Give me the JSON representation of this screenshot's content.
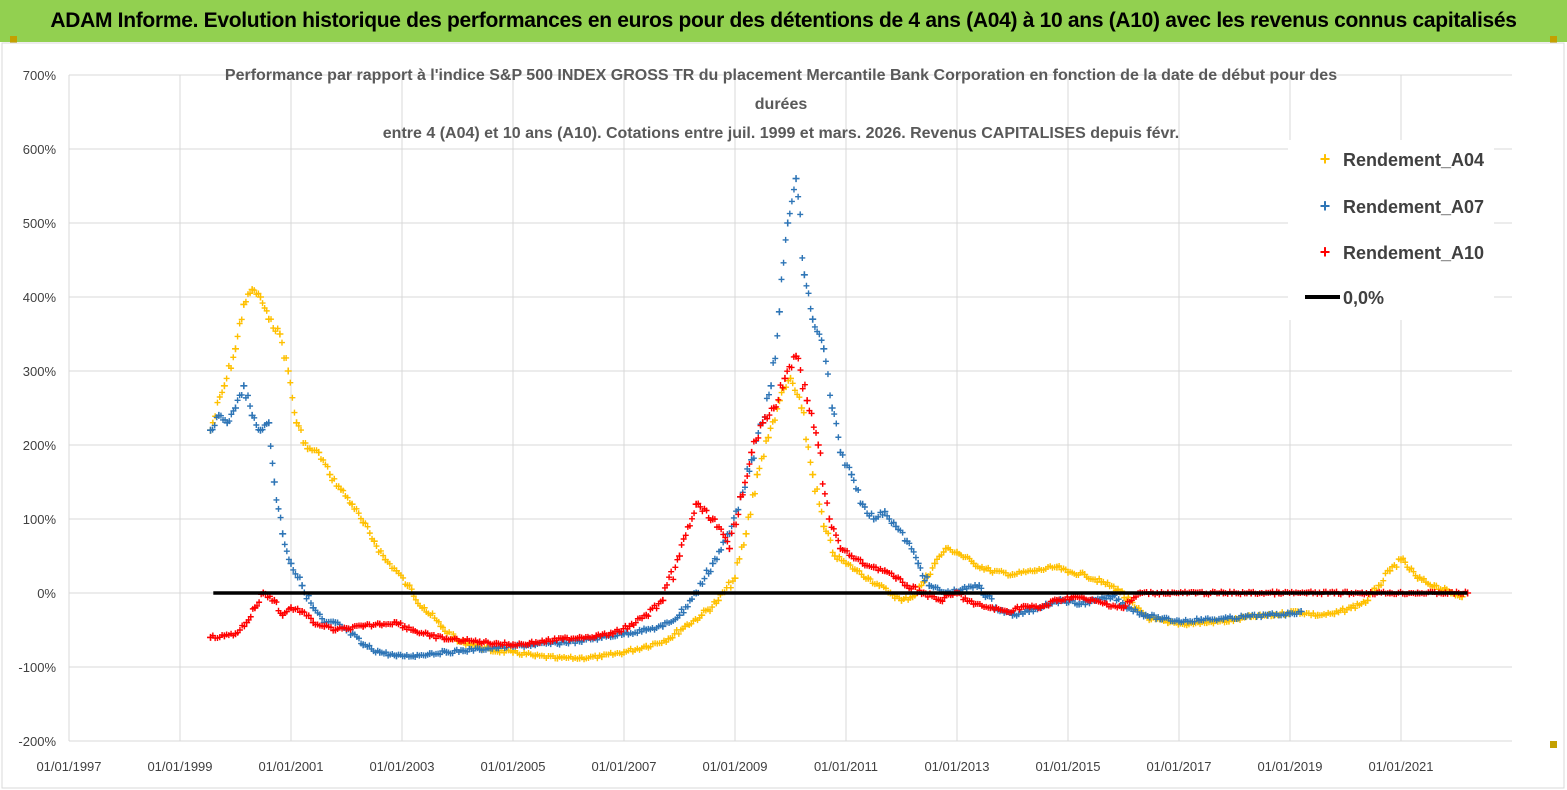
{
  "banner": {
    "title": "ADAM Informe. Evolution historique des performances en euros pour des détentions de 4 ans (A04) à 10 ans (A10) avec les revenus connus capitalisés"
  },
  "chart_data": {
    "type": "scatter",
    "title_lines": [
      "Performance par rapport à l'indice S&P 500 INDEX GROSS TR  du placement Mercantile Bank Corporation en fonction de la date de début pour des",
      "durées",
      "entre 4 (A04) et 10 ans (A10). Cotations entre juil. 1999 et mars. 2026. Revenus CAPITALISES depuis févr."
    ],
    "y_ticks": [
      "700%",
      "600%",
      "500%",
      "400%",
      "300%",
      "200%",
      "100%",
      "0%",
      "-100%",
      "-200%"
    ],
    "y_tick_values": [
      700,
      600,
      500,
      400,
      300,
      200,
      100,
      0,
      -100,
      -200
    ],
    "ylim": [
      -200,
      700
    ],
    "x_ticks": [
      "01/01/1997",
      "01/01/1999",
      "01/01/2001",
      "01/01/2003",
      "01/01/2005",
      "01/01/2007",
      "01/01/2009",
      "01/01/2011",
      "01/01/2013",
      "01/01/2015",
      "01/01/2017",
      "01/01/2019",
      "01/01/2021"
    ],
    "xlim": [
      1997.0,
      2023.0
    ],
    "legend": [
      {
        "name": "Rendement_A04",
        "color": "#ffc000",
        "marker": "+"
      },
      {
        "name": "Rendement_A07",
        "color": "#2e75b6",
        "marker": "+"
      },
      {
        "name": "Rendement_A10",
        "color": "#ff0000",
        "marker": "+"
      },
      {
        "name": "0,0%",
        "color": "#000000",
        "marker": "line"
      }
    ],
    "zero_line": {
      "x_start": 1999.6,
      "x_end": 2022.2,
      "y": 0
    },
    "series": [
      {
        "name": "Rendement_A04",
        "color": "#ffc000",
        "x": [
          1999.55,
          1999.8,
          2000.0,
          2000.15,
          2000.3,
          2000.45,
          2000.6,
          2000.8,
          2000.95,
          2001.1,
          2001.3,
          2001.5,
          2001.7,
          2001.9,
          2002.1,
          2002.3,
          2002.5,
          2002.7,
          2002.9,
          2003.1,
          2003.4,
          2003.7,
          2004.0,
          2004.3,
          2004.6,
          2005.0,
          2005.4,
          2005.8,
          2006.2,
          2006.6,
          2007.0,
          2007.4,
          2007.8,
          2008.1,
          2008.4,
          2008.7,
          2009.0,
          2009.2,
          2009.4,
          2009.6,
          2009.8,
          2010.0,
          2010.2,
          2010.4,
          2010.6,
          2010.8,
          2011.0,
          2011.2,
          2011.4,
          2011.6,
          2011.8,
          2012.0,
          2012.2,
          2012.4,
          2012.6,
          2012.8,
          2013.0,
          2013.3,
          2013.6,
          2014.0,
          2014.4,
          2014.8,
          2015.0,
          2015.3,
          2015.6,
          2015.9,
          2016.2,
          2016.5,
          2016.8,
          2017.1,
          2017.5,
          2017.9,
          2018.3,
          2018.7,
          2019.1,
          2019.5,
          2019.8,
          2020.1,
          2020.4,
          2020.6,
          2020.8,
          2021.0,
          2021.3,
          2021.6,
          2021.9,
          2022.1
        ],
        "y": [
          220,
          280,
          330,
          390,
          410,
          400,
          370,
          350,
          300,
          230,
          195,
          190,
          160,
          140,
          120,
          95,
          70,
          45,
          30,
          10,
          -20,
          -45,
          -65,
          -70,
          -78,
          -80,
          -85,
          -88,
          -88,
          -86,
          -80,
          -72,
          -62,
          -45,
          -30,
          -10,
          20,
          80,
          160,
          210,
          260,
          290,
          250,
          160,
          90,
          50,
          40,
          30,
          20,
          10,
          0,
          -10,
          -5,
          15,
          40,
          60,
          55,
          40,
          30,
          25,
          30,
          35,
          28,
          25,
          15,
          5,
          -20,
          -35,
          -40,
          -42,
          -40,
          -38,
          -32,
          -30,
          -25,
          -30,
          -28,
          -20,
          -10,
          10,
          30,
          45,
          20,
          10,
          0,
          -5
        ]
      },
      {
        "name": "Rendement_A07",
        "color": "#2e75b6",
        "x": [
          1999.55,
          1999.7,
          1999.85,
          2000.0,
          2000.15,
          2000.3,
          2000.45,
          2000.6,
          2000.7,
          2000.85,
          2001.0,
          2001.2,
          2001.4,
          2001.6,
          2001.8,
          2002.0,
          2002.3,
          2002.6,
          2002.9,
          2003.2,
          2003.5,
          2003.8,
          2004.1,
          2004.4,
          2004.7,
          2005.0,
          2005.4,
          2005.8,
          2006.2,
          2006.6,
          2007.0,
          2007.4,
          2007.7,
          2008.0,
          2008.3,
          2008.6,
          2008.9,
          2009.1,
          2009.3,
          2009.5,
          2009.65,
          2009.8,
          2009.95,
          2010.1,
          2010.25,
          2010.4,
          2010.6,
          2010.75,
          2010.9,
          2011.1,
          2011.3,
          2011.5,
          2011.7,
          2011.9,
          2012.1,
          2012.3,
          2012.5,
          2012.8,
          2013.1,
          2013.4,
          2013.7,
          2014.0,
          2014.3,
          2014.6,
          2014.9,
          2015.2,
          2015.5,
          2015.8,
          2016.1,
          2016.4,
          2016.7,
          2017.0,
          2017.4,
          2017.8,
          2018.2,
          2018.6,
          2019.0,
          2019.2
        ],
        "y": [
          220,
          240,
          230,
          250,
          280,
          240,
          220,
          230,
          150,
          80,
          40,
          10,
          -20,
          -40,
          -40,
          -50,
          -70,
          -80,
          -85,
          -85,
          -82,
          -80,
          -78,
          -76,
          -74,
          -72,
          -70,
          -68,
          -65,
          -60,
          -55,
          -50,
          -45,
          -30,
          0,
          40,
          80,
          130,
          180,
          230,
          280,
          380,
          500,
          560,
          430,
          370,
          330,
          250,
          190,
          160,
          120,
          100,
          110,
          90,
          70,
          40,
          10,
          0,
          5,
          10,
          -20,
          -30,
          -25,
          -15,
          -10,
          -15,
          -10,
          -5,
          -20,
          -30,
          -35,
          -38,
          -36,
          -35,
          -32,
          -30,
          -28,
          -25
        ]
      },
      {
        "name": "Rendement_A10",
        "color": "#ff0000",
        "x": [
          1999.55,
          1999.8,
          2000.0,
          2000.2,
          2000.35,
          2000.5,
          2000.7,
          2000.85,
          2001.0,
          2001.2,
          2001.4,
          2001.6,
          2001.8,
          2002.0,
          2002.3,
          2002.6,
          2002.9,
          2003.2,
          2003.5,
          2003.8,
          2004.1,
          2004.4,
          2004.7,
          2005.0,
          2005.3,
          2005.6,
          2005.9,
          2006.2,
          2006.5,
          2006.8,
          2007.1,
          2007.4,
          2007.7,
          2008.0,
          2008.3,
          2008.6,
          2008.9,
          2009.1,
          2009.3,
          2009.5,
          2009.7,
          2009.9,
          2010.1,
          2010.3,
          2010.5,
          2010.7,
          2010.9,
          2011.1,
          2011.3,
          2011.5,
          2011.7,
          2011.9,
          2012.1,
          2012.4,
          2012.7,
          2013.0,
          2013.3,
          2013.6,
          2013.9,
          2014.2,
          2014.5,
          2014.8,
          2015.1,
          2015.4,
          2015.7,
          2016.0,
          2016.3,
          2016.8,
          2017.3,
          2017.8,
          2018.3,
          2018.8,
          2019.3,
          2019.8,
          2020.3,
          2020.8,
          2021.3,
          2021.8,
          2022.2
        ],
        "y": [
          -60,
          -58,
          -55,
          -40,
          -20,
          0,
          -10,
          -30,
          -20,
          -25,
          -40,
          -45,
          -50,
          -48,
          -45,
          -42,
          -40,
          -50,
          -58,
          -62,
          -64,
          -66,
          -68,
          -70,
          -68,
          -65,
          -62,
          -60,
          -58,
          -55,
          -45,
          -30,
          -10,
          50,
          120,
          100,
          60,
          130,
          190,
          230,
          250,
          290,
          320,
          260,
          200,
          100,
          60,
          50,
          40,
          35,
          30,
          20,
          10,
          0,
          -10,
          0,
          -15,
          -20,
          -25,
          -18,
          -20,
          -10,
          -5,
          -10,
          -15,
          -20,
          0,
          0,
          0,
          0,
          0,
          0,
          0,
          0,
          0,
          0,
          0,
          0,
          0
        ]
      }
    ]
  }
}
